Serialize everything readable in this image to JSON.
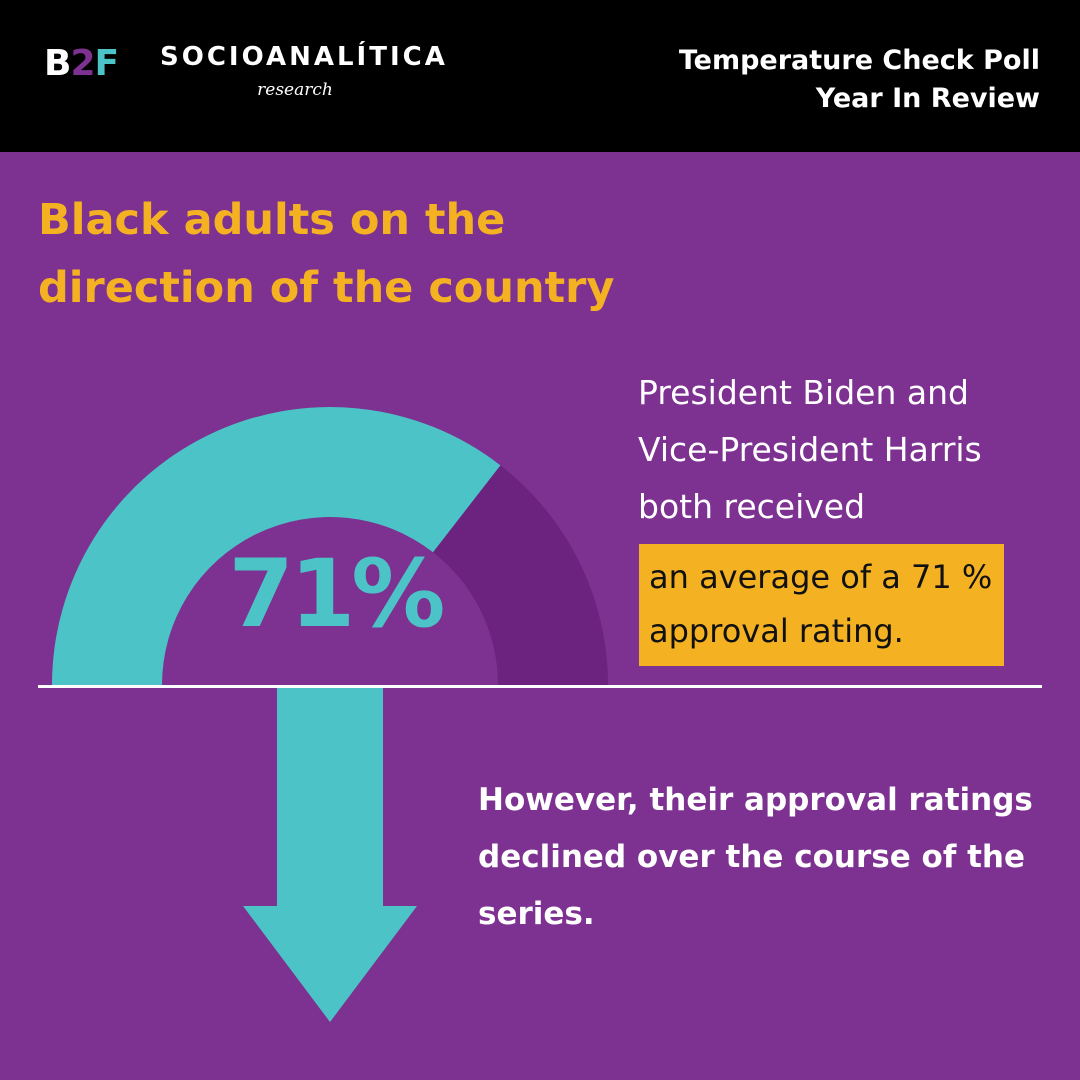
{
  "header": {
    "logo_b2f": {
      "b": "B",
      "two": "2",
      "f": "F"
    },
    "logo_socio": {
      "name": "SOCIOANALÍTICA",
      "sub": "research"
    },
    "title_line1": "Temperature Check Poll",
    "title_line2": "Year In Review"
  },
  "headline": "Black adults on the direction of the country",
  "gauge": {
    "value_label": "71%",
    "fraction": 0.71,
    "fill_color": "#4cc4c7",
    "track_color": "#6b237f"
  },
  "stat": {
    "text": "President Biden and Vice-President Harris both received",
    "highlight_line1": "an average of a 71 %",
    "highlight_line2": "approval rating."
  },
  "trend": {
    "text": "However, their approval ratings declined over the course of the series.",
    "arrow_icon": "arrow-down-icon"
  },
  "colors": {
    "background": "#7d3190",
    "header_bg": "#000000",
    "accent_yellow": "#f4b223",
    "accent_teal": "#4cc4c7"
  }
}
